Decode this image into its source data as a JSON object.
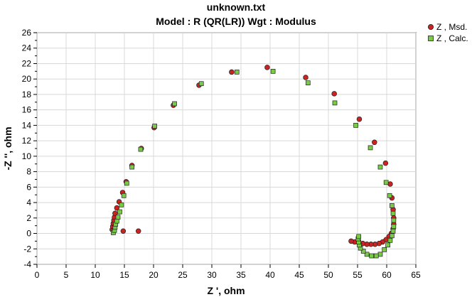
{
  "chart_data": {
    "type": "scatter",
    "title": "unknown.txt",
    "subtitle": "Model : R (QR(LR))     Wgt : Modulus",
    "xlabel": "Z ', ohm",
    "ylabel": "-Z '', ohm",
    "xlim": [
      0,
      65
    ],
    "ylim": [
      -4,
      26
    ],
    "xticks": [
      0,
      5,
      10,
      15,
      20,
      25,
      30,
      35,
      40,
      45,
      50,
      55,
      60,
      65
    ],
    "yticks": [
      -4,
      -2,
      0,
      2,
      4,
      6,
      8,
      10,
      12,
      14,
      16,
      18,
      20,
      22,
      24,
      26
    ],
    "grid": true,
    "legend_position": "top-right",
    "series": [
      {
        "name": "Z , Msd.",
        "marker": "circle",
        "color": "#cc2222",
        "points": [
          [
            14.8,
            0.3
          ],
          [
            17.4,
            0.3
          ],
          [
            12.9,
            0.5
          ],
          [
            13.0,
            0.9
          ],
          [
            13.1,
            1.3
          ],
          [
            13.2,
            1.7
          ],
          [
            13.3,
            2.1
          ],
          [
            13.4,
            2.6
          ],
          [
            13.7,
            3.3
          ],
          [
            14.1,
            4.1
          ],
          [
            14.7,
            5.3
          ],
          [
            15.3,
            6.7
          ],
          [
            16.3,
            8.8
          ],
          [
            17.9,
            11.0
          ],
          [
            20.1,
            13.7
          ],
          [
            23.4,
            16.6
          ],
          [
            27.8,
            19.2
          ],
          [
            33.4,
            20.9
          ],
          [
            39.5,
            21.5
          ],
          [
            46.1,
            20.2
          ],
          [
            51.0,
            18.1
          ],
          [
            55.3,
            14.8
          ],
          [
            57.9,
            11.8
          ],
          [
            59.8,
            9.1
          ],
          [
            60.6,
            6.4
          ],
          [
            60.9,
            4.6
          ],
          [
            61.1,
            3.1
          ],
          [
            61.2,
            2.0
          ],
          [
            61.2,
            1.2
          ],
          [
            61.1,
            0.6
          ],
          [
            60.8,
            0.0
          ],
          [
            60.4,
            -0.4
          ],
          [
            59.9,
            -0.8
          ],
          [
            59.3,
            -1.1
          ],
          [
            58.7,
            -1.3
          ],
          [
            58.0,
            -1.4
          ],
          [
            57.3,
            -1.4
          ],
          [
            56.6,
            -1.4
          ],
          [
            55.9,
            -1.3
          ],
          [
            55.2,
            -1.2
          ],
          [
            54.5,
            -1.1
          ],
          [
            53.9,
            -1.0
          ]
        ]
      },
      {
        "name": "Z , Calc.",
        "marker": "square",
        "color": "#77cc44",
        "points": [
          [
            13.1,
            0.1
          ],
          [
            13.3,
            0.4
          ],
          [
            13.4,
            0.8
          ],
          [
            13.5,
            1.2
          ],
          [
            13.7,
            1.6
          ],
          [
            13.9,
            2.1
          ],
          [
            14.2,
            2.8
          ],
          [
            14.5,
            3.7
          ],
          [
            14.9,
            4.9
          ],
          [
            15.4,
            6.5
          ],
          [
            16.3,
            8.6
          ],
          [
            17.8,
            10.9
          ],
          [
            20.2,
            13.9
          ],
          [
            23.6,
            16.8
          ],
          [
            28.2,
            19.4
          ],
          [
            34.3,
            20.9
          ],
          [
            40.5,
            21.0
          ],
          [
            46.5,
            19.5
          ],
          [
            51.1,
            16.9
          ],
          [
            54.7,
            14.0
          ],
          [
            57.2,
            11.1
          ],
          [
            58.9,
            8.6
          ],
          [
            59.9,
            6.6
          ],
          [
            60.5,
            4.9
          ],
          [
            60.9,
            3.6
          ],
          [
            61.1,
            2.6
          ],
          [
            61.2,
            1.7
          ],
          [
            61.2,
            0.9
          ],
          [
            61.1,
            0.3
          ],
          [
            60.9,
            -0.3
          ],
          [
            60.6,
            -0.9
          ],
          [
            60.2,
            -1.5
          ],
          [
            59.6,
            -2.1
          ],
          [
            58.9,
            -2.7
          ],
          [
            58.2,
            -2.9
          ],
          [
            57.4,
            -2.9
          ],
          [
            56.6,
            -2.7
          ],
          [
            56.0,
            -2.3
          ],
          [
            55.5,
            -1.9
          ],
          [
            55.3,
            -1.5
          ],
          [
            55.2,
            -1.1
          ],
          [
            55.1,
            -0.7
          ],
          [
            55.2,
            -0.4
          ]
        ]
      }
    ]
  }
}
